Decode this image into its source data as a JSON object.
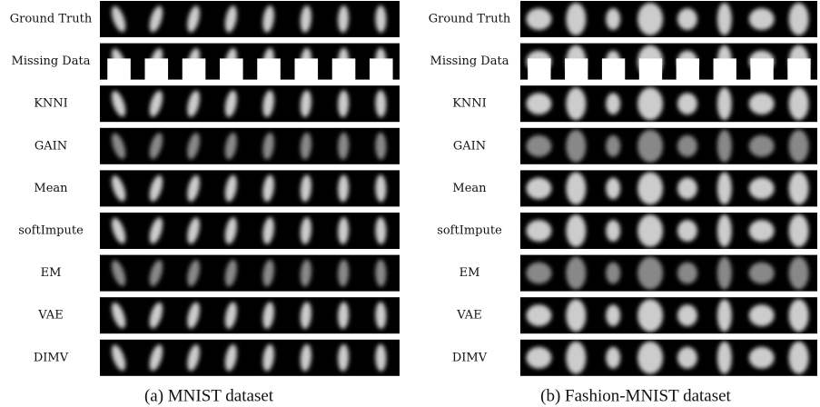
{
  "panels": [
    {
      "rows": [
        "Ground Truth",
        "Missing Data",
        "KNNI",
        "GAIN",
        "Mean",
        "softImpute",
        "EM",
        "VAE",
        "DIMV"
      ],
      "caption": "(a) MNIST dataset"
    },
    {
      "rows": [
        "Ground Truth",
        "Missing Data",
        "KNNI",
        "GAIN",
        "Mean",
        "softImpute",
        "EM",
        "VAE",
        "DIMV"
      ],
      "caption": "(b) Fashion-MNIST dataset"
    }
  ]
}
